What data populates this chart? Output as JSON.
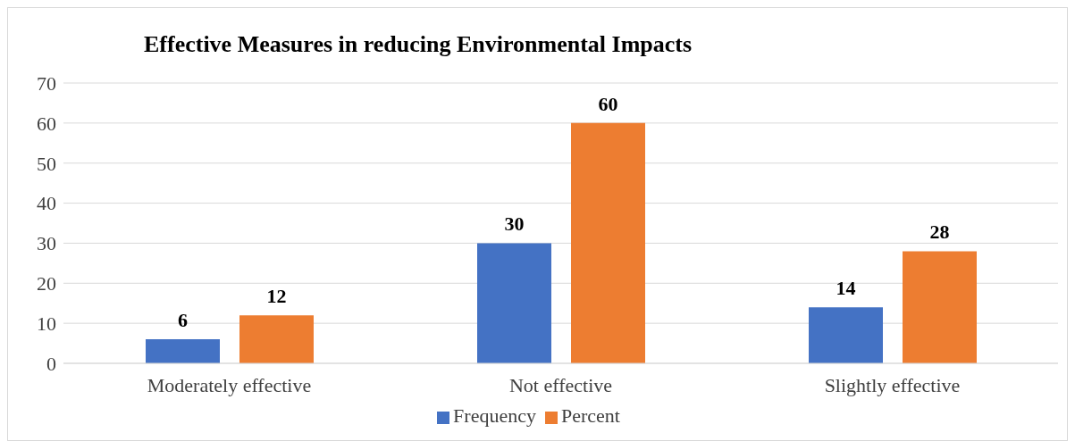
{
  "chart_data": {
    "type": "bar",
    "title": "Effective Measures in reducing Environmental Impacts",
    "categories": [
      "Moderately effective",
      "Not effective",
      "Slightly effective"
    ],
    "series": [
      {
        "name": "Frequency",
        "color": "#4472c4",
        "values": [
          6,
          30,
          14
        ]
      },
      {
        "name": "Percent",
        "color": "#ed7d31",
        "values": [
          12,
          60,
          28
        ]
      }
    ],
    "ylim": [
      0,
      70
    ],
    "yticks": [
      0,
      10,
      20,
      30,
      40,
      50,
      60,
      70
    ],
    "grid": "y",
    "legend": "bottom",
    "data_labels": true
  }
}
